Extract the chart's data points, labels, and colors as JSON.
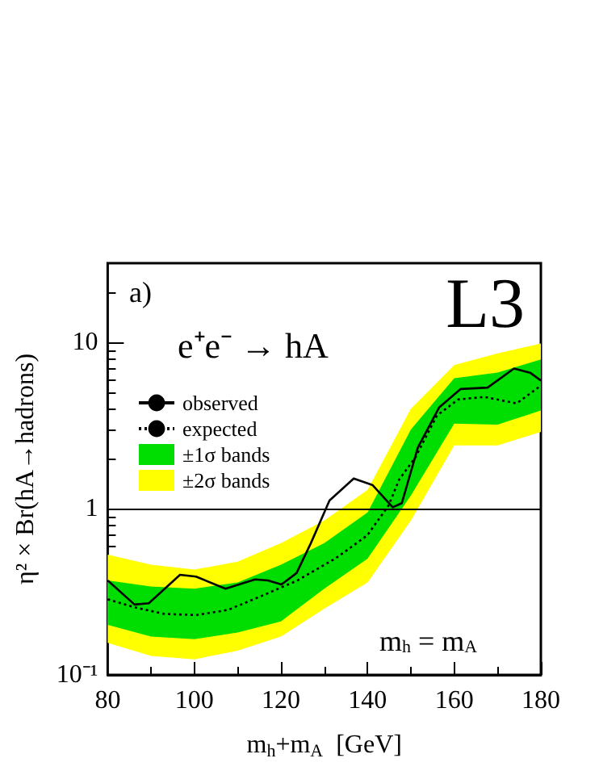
{
  "chart_data": {
    "type": "line",
    "xlabel": "m$_{h}$+m$_{A}$  [GeV]",
    "ylabel": "η² × Br(hA→hadrons)",
    "annotations": [
      "a)",
      "e⁺e⁻ → hA",
      "L3",
      "m$_{h}$ = m$_{A}$"
    ],
    "log": "y",
    "xlim": [
      80,
      180
    ],
    "xticks": [
      80,
      100,
      120,
      140,
      160,
      180
    ],
    "ylim": [
      0.1,
      30
    ],
    "yticks": [
      {
        "value": 0.1,
        "label": "10⁻¹"
      },
      1,
      10
    ],
    "grid": false,
    "legend": "top left",
    "ref_lines": [
      {
        "axis": "y",
        "value": 1,
        "color": "#000000"
      }
    ],
    "series": [
      {
        "name": "±2σ bands",
        "type": "area",
        "color": "#ffff00",
        "x": [
          80,
          90,
          100,
          110,
          120,
          130,
          140,
          150,
          160,
          170,
          180
        ],
        "values": [
          null,
          null,
          null,
          null,
          null,
          null,
          null,
          null,
          null,
          null,
          null
        ],
        "lower": [
          0.156,
          0.13,
          0.124,
          0.14,
          0.17,
          0.25,
          0.36,
          0.85,
          2.4,
          2.4,
          2.9
        ],
        "upper": [
          0.53,
          0.46,
          0.43,
          0.48,
          0.62,
          0.85,
          1.3,
          4.0,
          7.3,
          8.6,
          9.85
        ]
      },
      {
        "name": "±1σ bands",
        "type": "area",
        "color": "#00dd00",
        "x": [
          80,
          90,
          100,
          110,
          120,
          130,
          140,
          150,
          160,
          170,
          180
        ],
        "values": [
          null,
          null,
          null,
          null,
          null,
          null,
          null,
          null,
          null,
          null,
          null
        ],
        "lower": [
          0.2,
          0.17,
          0.164,
          0.18,
          0.21,
          0.33,
          0.5,
          1.2,
          3.25,
          3.2,
          3.9
        ],
        "upper": [
          0.37,
          0.34,
          0.33,
          0.36,
          0.46,
          0.62,
          0.95,
          3.0,
          6.1,
          6.6,
          7.9
        ]
      },
      {
        "name": "expected",
        "type": "line",
        "line_style": "dotted",
        "color": "#000000",
        "x": [
          80,
          86.2,
          93,
          100.4,
          107.8,
          115.2,
          123.8,
          132.5,
          139.9,
          144.8,
          147.3,
          151,
          156,
          160.9,
          167,
          174.4,
          180
        ],
        "values": [
          0.285,
          0.255,
          0.233,
          0.229,
          0.246,
          0.296,
          0.37,
          0.5,
          0.69,
          1.04,
          1.5,
          2.03,
          3.63,
          4.54,
          4.7,
          4.3,
          5.5
        ]
      },
      {
        "name": "observed",
        "type": "line",
        "line_style": "solid",
        "color": "#000000",
        "x": [
          80,
          86.2,
          89.5,
          96.7,
          100.4,
          107.2,
          114,
          117,
          120.1,
          123.6,
          126.9,
          131.2,
          136.8,
          141.1,
          145.8,
          147.9,
          151.6,
          156.5,
          161.5,
          167.7,
          173.8,
          177.5,
          180
        ],
        "values": [
          0.37,
          0.265,
          0.27,
          0.4,
          0.39,
          0.33,
          0.375,
          0.37,
          0.35,
          0.41,
          0.62,
          1.12,
          1.52,
          1.39,
          1.02,
          1.08,
          2.33,
          4.06,
          5.25,
          5.35,
          6.97,
          6.58,
          5.9
        ]
      }
    ]
  }
}
